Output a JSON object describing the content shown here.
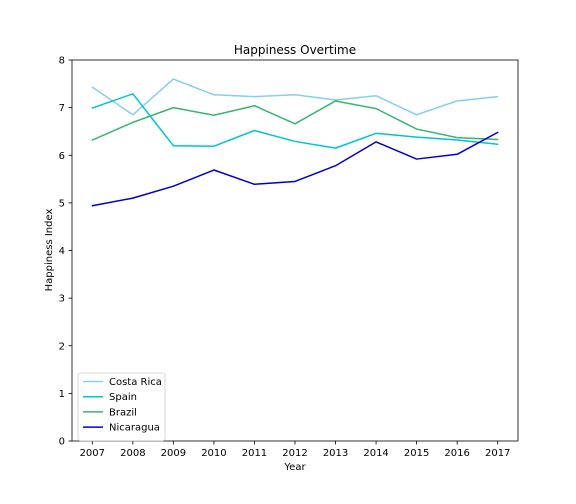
{
  "chart_data": {
    "type": "line",
    "title": "Happiness Overtime",
    "xlabel": "Year",
    "ylabel": "Happiness Index",
    "x": [
      "2007",
      "2008",
      "2009",
      "2010",
      "2011",
      "2012",
      "2013",
      "2014",
      "2015",
      "2016",
      "2017"
    ],
    "ylim": [
      0,
      8
    ],
    "yticks": [
      "0",
      "1",
      "2",
      "3",
      "4",
      "5",
      "6",
      "7",
      "8"
    ],
    "grid": false,
    "legend_position": "lower-left",
    "series": [
      {
        "name": "Costa Rica",
        "color": "#87ceeb",
        "values": [
          7.43,
          6.85,
          7.6,
          7.27,
          7.23,
          7.27,
          7.16,
          7.25,
          6.85,
          7.14,
          7.23
        ]
      },
      {
        "name": "Spain",
        "color": "#00c5cd",
        "values": [
          6.99,
          7.29,
          6.2,
          6.19,
          6.52,
          6.29,
          6.15,
          6.46,
          6.38,
          6.32,
          6.23
        ]
      },
      {
        "name": "Brazil",
        "color": "#3cb371",
        "values": [
          6.32,
          6.69,
          7.0,
          6.84,
          7.04,
          6.66,
          7.14,
          6.98,
          6.55,
          6.37,
          6.33
        ]
      },
      {
        "name": "Nicaragua",
        "color": "#0000cd",
        "values": [
          4.94,
          5.1,
          5.35,
          5.69,
          5.39,
          5.45,
          5.78,
          6.28,
          5.92,
          6.02,
          6.48
        ]
      }
    ]
  }
}
